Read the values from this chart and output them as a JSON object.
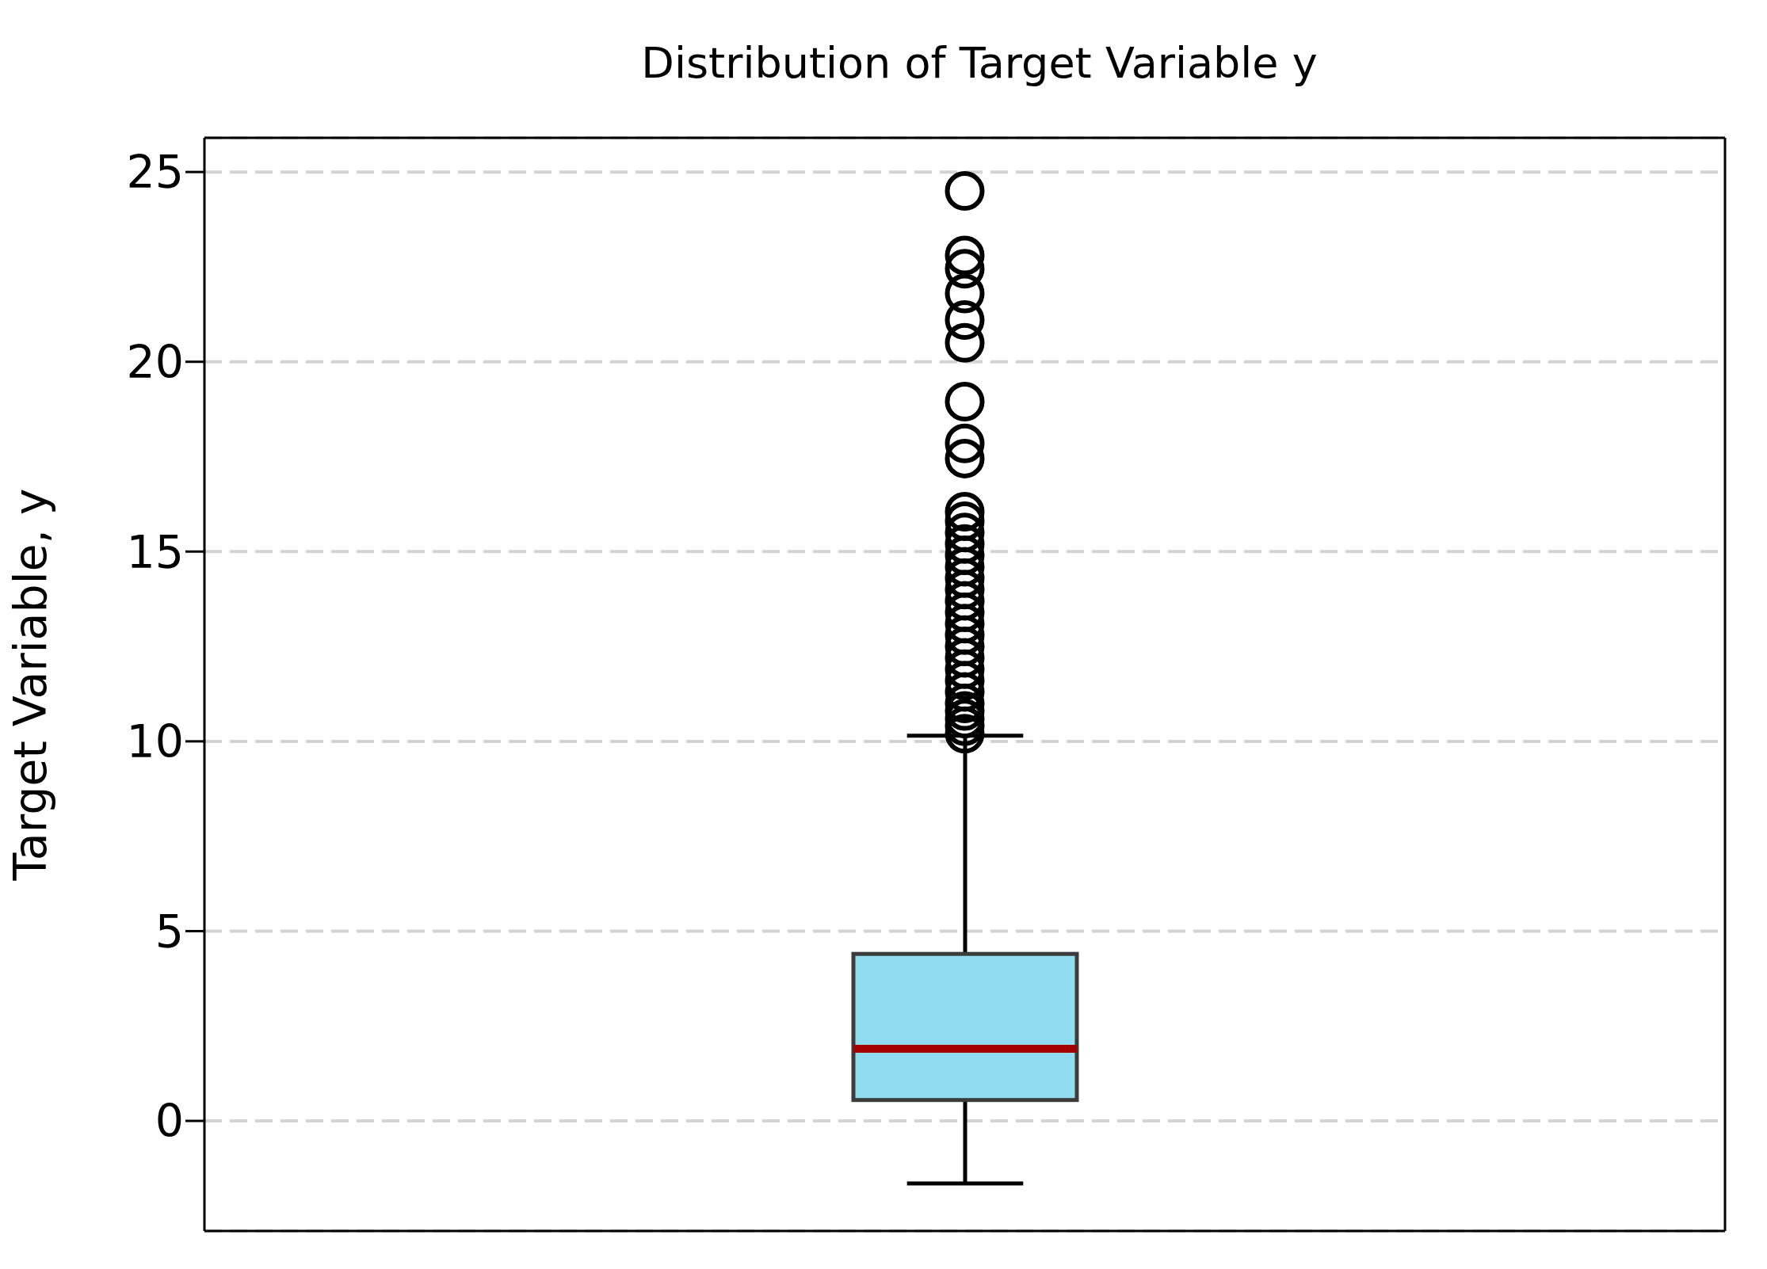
{
  "chart_data": {
    "type": "box",
    "title": "Distribution of Target Variable y",
    "ylabel": "Target Variable, y",
    "categories": [
      null
    ],
    "boxes": [
      {
        "low": -1.65,
        "q1": 0.55,
        "median": 1.9,
        "q3": 4.4,
        "high": 10.15,
        "outliers": [
          24.5,
          22.8,
          22.45,
          21.8,
          21.1,
          20.5,
          18.95,
          17.85,
          17.45,
          16.05,
          15.8,
          15.5,
          15.2,
          14.9,
          14.6,
          14.3,
          14.0,
          13.7,
          13.4,
          13.1,
          12.8,
          12.5,
          12.2,
          11.9,
          11.6,
          11.3,
          11.0,
          10.8,
          10.6,
          10.4,
          10.2
        ]
      }
    ],
    "color": "#92dcf0",
    "ylim": [
      -2.9,
      25.9
    ],
    "yticks": [
      0,
      5,
      10,
      15,
      20,
      25
    ],
    "grid": "y",
    "tick_labels": "y",
    "marker": "circle"
  }
}
